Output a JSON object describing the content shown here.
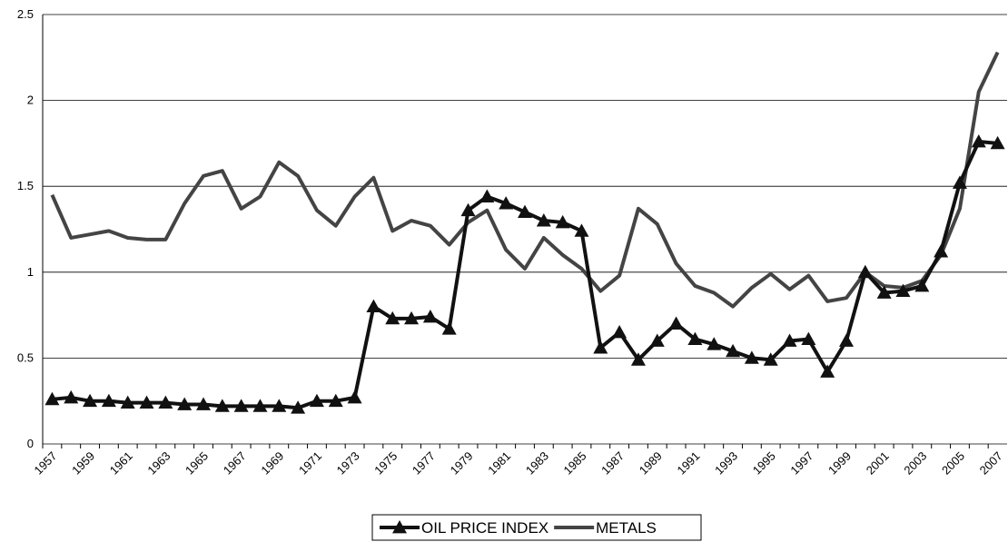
{
  "chart_data": {
    "type": "line",
    "categories": [
      "1957",
      null,
      "1959",
      null,
      "1961",
      null,
      "1963",
      null,
      "1965",
      null,
      "1967",
      null,
      "1969",
      null,
      "1971",
      null,
      "1973",
      null,
      "1975",
      null,
      "1977",
      null,
      "1979",
      null,
      "1981",
      null,
      "1983",
      null,
      "1985",
      null,
      "1987",
      null,
      "1989",
      null,
      "1991",
      null,
      "1993",
      null,
      "1995",
      null,
      "1997",
      null,
      "1999",
      null,
      "2001",
      null,
      "2003",
      null,
      "2005",
      null,
      "2007"
    ],
    "series": [
      {
        "name": "OIL PRICE INDEX",
        "color": "#111111",
        "marker": "triangle",
        "values": [
          0.26,
          0.27,
          0.25,
          0.25,
          0.24,
          0.24,
          0.24,
          0.23,
          0.23,
          0.22,
          0.22,
          0.22,
          0.22,
          0.21,
          0.25,
          0.25,
          0.27,
          0.8,
          0.73,
          0.73,
          0.74,
          0.67,
          1.36,
          1.44,
          1.4,
          1.35,
          1.3,
          1.29,
          1.24,
          0.56,
          0.65,
          0.49,
          0.6,
          0.7,
          0.61,
          0.58,
          0.54,
          0.5,
          0.49,
          0.6,
          0.61,
          0.42,
          0.6,
          1.0,
          0.88,
          0.89,
          0.92,
          1.12,
          1.52,
          1.76,
          1.75
        ]
      },
      {
        "name": "METALS",
        "color": "#444444",
        "values": [
          1.45,
          1.2,
          1.22,
          1.24,
          1.2,
          1.19,
          1.19,
          1.4,
          1.56,
          1.59,
          1.37,
          1.44,
          1.64,
          1.56,
          1.36,
          1.27,
          1.44,
          1.55,
          1.24,
          1.3,
          1.27,
          1.16,
          1.29,
          1.36,
          1.13,
          1.02,
          1.2,
          1.1,
          1.02,
          0.89,
          0.98,
          1.37,
          1.28,
          1.05,
          0.92,
          0.88,
          0.8,
          0.91,
          0.99,
          0.9,
          0.98,
          0.83,
          0.85,
          1.0,
          0.92,
          0.91,
          0.95,
          1.1,
          1.37,
          2.05,
          2.28
        ]
      }
    ],
    "ylim": [
      0,
      2.5
    ],
    "yticks": [
      0,
      0.5,
      1,
      1.5,
      2,
      2.5
    ],
    "grid": true,
    "legend": "bottom"
  }
}
